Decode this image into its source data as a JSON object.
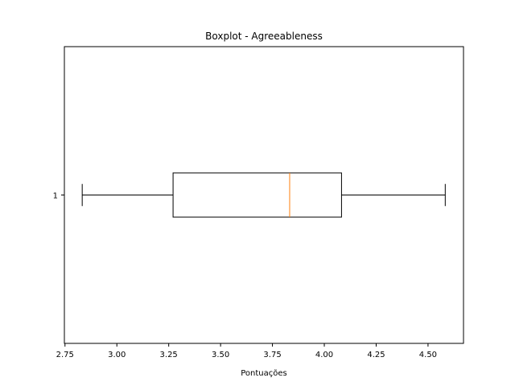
{
  "chart_data": {
    "type": "boxplot",
    "orientation": "horizontal",
    "title": "Boxplot - Agreeableness",
    "xlabel": "Pontuações",
    "ylabel": "",
    "xlim": [
      2.747,
      4.671
    ],
    "xticks": [
      2.75,
      3.0,
      3.25,
      3.5,
      3.75,
      4.0,
      4.25,
      4.5
    ],
    "xtick_labels": [
      "2.75",
      "3.00",
      "3.25",
      "3.50",
      "3.75",
      "4.00",
      "4.25",
      "4.50"
    ],
    "categories": [
      "1"
    ],
    "boxes": [
      {
        "category": "1",
        "whisker_low": 2.833,
        "q1": 3.271,
        "median": 3.833,
        "q3": 4.083,
        "whisker_high": 4.583
      }
    ],
    "colors": {
      "box": "#000000",
      "median": "#ff7f0e",
      "axes": "#000000"
    },
    "grid": false
  }
}
